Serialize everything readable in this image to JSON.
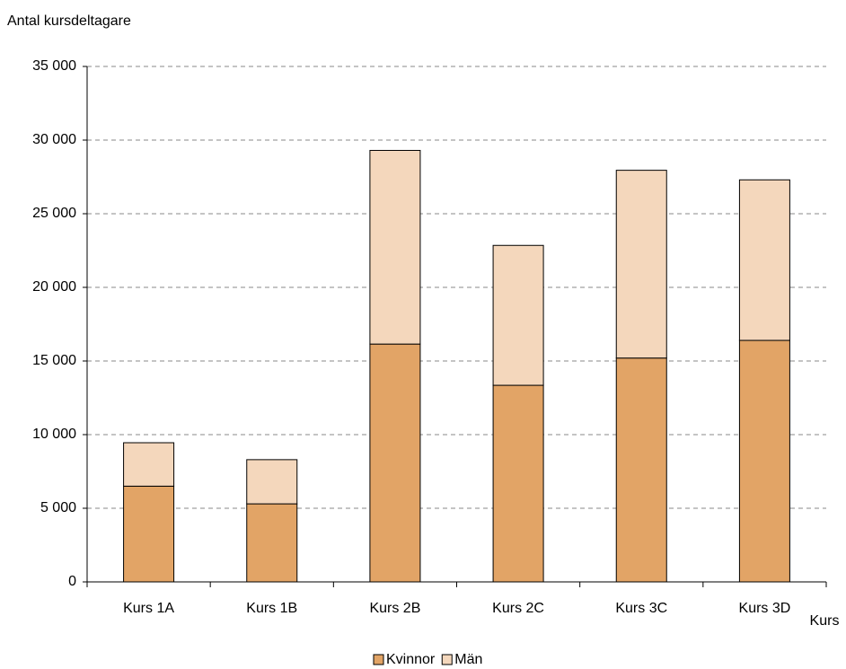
{
  "chart_data": {
    "type": "stacked-bar",
    "y_label": "Antal kursdeltagare",
    "x_label": "Kurs",
    "categories": [
      "Kurs 1A",
      "Kurs 1B",
      "Kurs 2B",
      "Kurs 2C",
      "Kurs 3C",
      "Kurs 3D"
    ],
    "series": [
      {
        "name": "Kvinnor",
        "color": "#e2a466",
        "values": [
          6500,
          5300,
          16150,
          13350,
          15200,
          16400
        ]
      },
      {
        "name": "Män",
        "color": "#f4d7bc",
        "values": [
          2950,
          3000,
          13150,
          9500,
          12750,
          10900
        ]
      }
    ],
    "ylim": [
      0,
      35000
    ],
    "yticks": [
      0,
      {
        "value": 5000,
        "label": "5 000"
      },
      {
        "value": 10000,
        "label": "10 000"
      },
      {
        "value": 15000,
        "label": "15 000"
      },
      {
        "value": 20000,
        "label": "20 000"
      },
      {
        "value": 25000,
        "label": "25 000"
      },
      {
        "value": 30000,
        "label": "30 000"
      },
      {
        "value": 35000,
        "label": "35 000"
      }
    ],
    "grid": true,
    "legend": "bottom"
  }
}
